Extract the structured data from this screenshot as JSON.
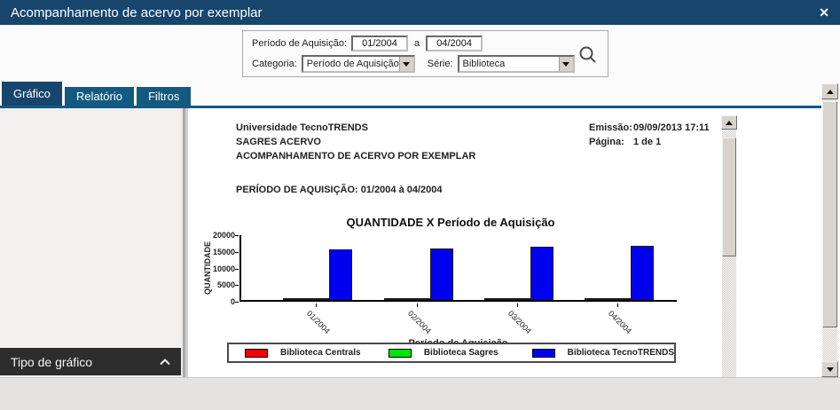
{
  "window": {
    "title": "Acompanhamento de acervo por exemplar"
  },
  "icons": {
    "close": "✕"
  },
  "filters": {
    "periodo_label": "Período de Aquisição:",
    "periodo_de": "01/2004",
    "a_label": "a",
    "periodo_ate": "04/2004",
    "categoria_label": "Categoria:",
    "categoria_value": "Período de Aquisição",
    "serie_label": "Série:",
    "serie_value": "Biblioteca"
  },
  "tabs": [
    {
      "label": "Gráfico",
      "active": true
    },
    {
      "label": "Relatório",
      "active": false
    },
    {
      "label": "Filtros",
      "active": false
    }
  ],
  "left_panel": {
    "tipo_grafico_label": "Tipo de gráfico"
  },
  "report": {
    "org_line1": "Universidade TecnoTRENDS",
    "org_line2": "SAGRES ACERVO",
    "org_line3": "ACOMPANHAMENTO DE ACERVO POR EXEMPLAR",
    "emissao_label": "Emissão:",
    "emissao_value": "09/09/2013 17:11",
    "pagina_label": "Página:",
    "pagina_value": "1 de 1",
    "periodo_line": "PERÍODO DE AQUISIÇÃO: 01/2004 à 04/2004"
  },
  "chart_data": {
    "type": "bar",
    "title": "QUANTIDADE X Período de Aquisição",
    "xlabel": "Período de Aquisição",
    "ylabel": "QUANTIDADE",
    "ylim": [
      0,
      20000
    ],
    "yticks": [
      0,
      5000,
      10000,
      15000,
      20000
    ],
    "categories": [
      "01/2004",
      "02/2004",
      "03/2004",
      "04/2004"
    ],
    "series": [
      {
        "name": "Biblioteca Centrals",
        "color": "#f40000",
        "values": [
          30,
          60,
          30,
          30
        ]
      },
      {
        "name": "Biblioteca Sagres",
        "color": "#00e400",
        "values": [
          250,
          350,
          150,
          150
        ]
      },
      {
        "name": "Biblioteca TecnoTRENDS",
        "color": "#0000f0",
        "values": [
          15300,
          15600,
          16100,
          16300
        ]
      }
    ],
    "legend_position": "bottom",
    "grid": false
  },
  "colors": {
    "titlebar": "#17456b",
    "tab_active": "#17456b",
    "tab_inactive": "#135a80",
    "panel_dark": "#2d2d2d",
    "bar_blue": "#0000f0",
    "legend_red": "#f40000",
    "legend_green": "#00e400"
  }
}
